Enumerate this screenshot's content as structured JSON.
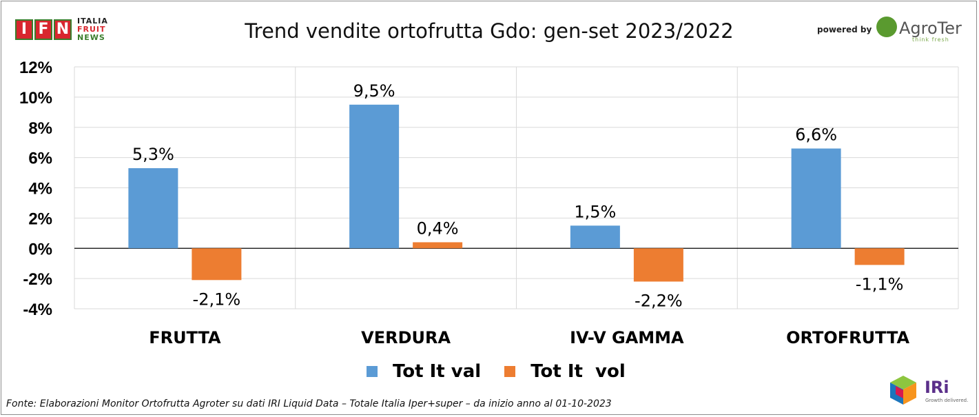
{
  "header": {
    "title": "Trend vendite ortofrutta Gdo: gen-set 2023/2022",
    "ifn_logo": {
      "letters": "IFN",
      "line1": "ITALIA",
      "line2": "FRUIT",
      "line3": "NEWS"
    },
    "powered_by": "powered by",
    "agroter": {
      "name": "AgroTer",
      "tagline": "think fresh"
    }
  },
  "footer": {
    "source": "Fonte: Elaborazioni Monitor Ortofrutta Agroter su dati IRI Liquid Data – Totale Italia Iper+super –  da inizio anno al 01-10-2023",
    "iri": {
      "name": "IRi",
      "tagline": "Growth delivered."
    }
  },
  "colors": {
    "val": "#5b9bd5",
    "vol": "#ed7d31",
    "grid": "#d9d9d9",
    "axis": "#000000"
  },
  "chart_data": {
    "type": "bar",
    "title": "Trend vendite ortofrutta Gdo: gen-set 2023/2022",
    "categories": [
      "FRUTTA",
      "VERDURA",
      "IV-V GAMMA",
      "ORTOFRUTTA"
    ],
    "series": [
      {
        "name": "Tot It val",
        "values": [
          5.3,
          9.5,
          1.5,
          6.6
        ],
        "labels": [
          "5,3%",
          "9,5%",
          "1,5%",
          "6,6%"
        ]
      },
      {
        "name": "Tot It  vol",
        "values": [
          -2.1,
          0.4,
          -2.2,
          -1.1
        ],
        "labels": [
          "-2,1%",
          "0,4%",
          "-2,2%",
          "-1,1%"
        ]
      }
    ],
    "yticks": [
      {
        "value": 12,
        "label": "12%"
      },
      {
        "value": 10,
        "label": "10%"
      },
      {
        "value": 8,
        "label": "8%"
      },
      {
        "value": 6,
        "label": "6%"
      },
      {
        "value": 4,
        "label": "4%"
      },
      {
        "value": 2,
        "label": "2%"
      },
      {
        "value": 0,
        "label": "0%"
      },
      {
        "value": -2,
        "label": "-2%"
      },
      {
        "value": -4,
        "label": "-4%"
      }
    ],
    "ylim": [
      -4,
      12
    ],
    "xlabel": "",
    "ylabel": "",
    "grid": true,
    "legend_position": "bottom"
  }
}
